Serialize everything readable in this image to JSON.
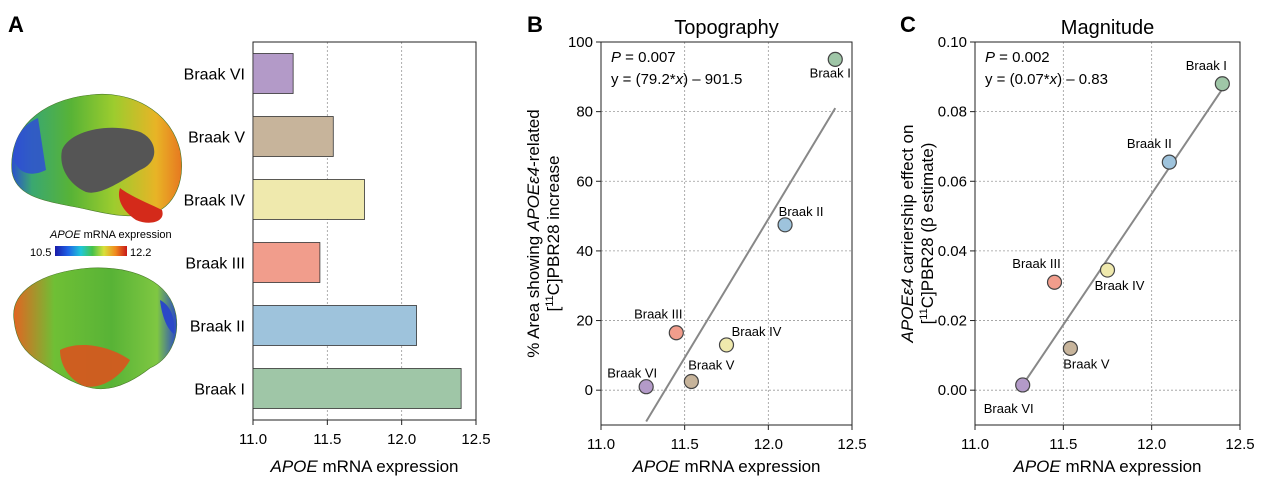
{
  "panel_labels": [
    "A",
    "B",
    "C"
  ],
  "brain_map": {
    "colorbar_label_gene": "APOE",
    "colorbar_label_rest": " mRNA expression",
    "colorbar_min": "10.5",
    "colorbar_max": "12.2"
  },
  "chart_data": [
    {
      "type": "bar",
      "orientation": "horizontal",
      "categories": [
        "Braak VI",
        "Braak V",
        "Braak IV",
        "Braak III",
        "Braak II",
        "Braak I"
      ],
      "values": [
        11.27,
        11.54,
        11.75,
        11.45,
        12.1,
        12.4
      ],
      "colors": [
        "#b39ac8",
        "#c7b49b",
        "#efe9ad",
        "#f19d8c",
        "#9ec3dc",
        "#9fc6a7"
      ],
      "xlim": [
        11.0,
        12.5
      ],
      "xticks": [
        "11.0",
        "11.5",
        "12.0",
        "12.5"
      ],
      "xlabel_italic": "APOE",
      "xlabel_rest": " mRNA expression",
      "grid": "x"
    },
    {
      "type": "scatter",
      "title": "Topography",
      "stats_p_label": "P",
      "stats_p_value": " = 0.007",
      "stats_eq_pre": "y = (79.2*",
      "stats_eq_x": "x",
      "stats_eq_post": ") – 901.5",
      "points": [
        {
          "label": "Braak I",
          "x": 12.4,
          "y": 95,
          "color": "#9fc6a7"
        },
        {
          "label": "Braak II",
          "x": 12.1,
          "y": 47.5,
          "color": "#9ec3dc"
        },
        {
          "label": "Braak III",
          "x": 11.45,
          "y": 16.5,
          "color": "#f19d8c"
        },
        {
          "label": "Braak IV",
          "x": 11.75,
          "y": 13,
          "color": "#efe9ad"
        },
        {
          "label": "Braak V",
          "x": 11.54,
          "y": 2.5,
          "color": "#c7b49b"
        },
        {
          "label": "Braak VI",
          "x": 11.27,
          "y": 1,
          "color": "#b39ac8"
        }
      ],
      "fit_line": {
        "x": [
          11.27,
          12.4
        ],
        "y": [
          -9,
          81
        ]
      },
      "xlim": [
        11.0,
        12.5
      ],
      "ylim": [
        -10,
        100
      ],
      "xticks": [
        "11.0",
        "11.5",
        "12.0",
        "12.5"
      ],
      "yticks": [
        "0",
        "20",
        "40",
        "60",
        "80",
        "100"
      ],
      "xlabel_italic": "APOE",
      "xlabel_rest": " mRNA expression",
      "ylabel_line1_pre": "% Area showing ",
      "ylabel_line1_italic": "APOEε4",
      "ylabel_line1_post": "-related",
      "ylabel_line2_pre": "[",
      "ylabel_line2_sup": "11",
      "ylabel_line2_post": "C]PBR28 increase"
    },
    {
      "type": "scatter",
      "title": "Magnitude",
      "stats_p_label": "P",
      "stats_p_value": " = 0.002",
      "stats_eq_pre": "y = (0.07*",
      "stats_eq_x": "x",
      "stats_eq_post": ") – 0.83",
      "points": [
        {
          "label": "Braak I",
          "x": 12.4,
          "y": 0.088,
          "color": "#9fc6a7"
        },
        {
          "label": "Braak II",
          "x": 12.1,
          "y": 0.0655,
          "color": "#9ec3dc"
        },
        {
          "label": "Braak III",
          "x": 11.45,
          "y": 0.031,
          "color": "#f19d8c"
        },
        {
          "label": "Braak IV",
          "x": 11.75,
          "y": 0.0345,
          "color": "#efe9ad"
        },
        {
          "label": "Braak V",
          "x": 11.54,
          "y": 0.012,
          "color": "#c7b49b"
        },
        {
          "label": "Braak VI",
          "x": 11.27,
          "y": 0.0015,
          "color": "#b39ac8"
        }
      ],
      "fit_line": {
        "x": [
          11.27,
          12.4
        ],
        "y": [
          0.0015,
          0.0865
        ]
      },
      "xlim": [
        11.0,
        12.5
      ],
      "ylim": [
        -0.01,
        0.1
      ],
      "xticks": [
        "11.0",
        "11.5",
        "12.0",
        "12.5"
      ],
      "yticks": [
        "0.00",
        "0.02",
        "0.04",
        "0.06",
        "0.08",
        "0.10"
      ],
      "xlabel_italic": "APOE",
      "xlabel_rest": " mRNA expression",
      "ylabel_line1_italic": "APOEε4",
      "ylabel_line1_post": " carriership effect on",
      "ylabel_line2_pre": "[",
      "ylabel_line2_sup": "11",
      "ylabel_line2_post": "C]PBR28 (β estimate)"
    }
  ]
}
